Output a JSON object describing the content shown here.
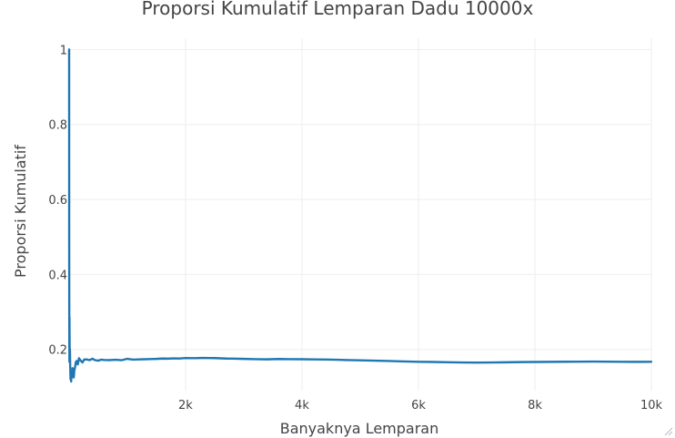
{
  "colors": {
    "series": "#1f77b4",
    "text": "#444444",
    "grid": "#eeeeee"
  },
  "chart_data": {
    "type": "line",
    "title": "Proporsi Kumulatif Lemparan Dadu 10000x",
    "xlabel": "Banyaknya Lemparan",
    "ylabel": "Proporsi Kumulatif",
    "xlim": [
      1,
      10000
    ],
    "ylim": [
      0.09,
      1.03
    ],
    "grid": true,
    "legend": "none",
    "x_ticks": [
      {
        "value": 2000,
        "label": "2k"
      },
      {
        "value": 4000,
        "label": "4k"
      },
      {
        "value": 6000,
        "label": "6k"
      },
      {
        "value": 8000,
        "label": "8k"
      },
      {
        "value": 10000,
        "label": "10k"
      }
    ],
    "y_ticks": [
      {
        "value": 0.2,
        "label": "0.2"
      },
      {
        "value": 0.4,
        "label": "0.4"
      },
      {
        "value": 0.6,
        "label": "0.6"
      },
      {
        "value": 0.8,
        "label": "0.8"
      },
      {
        "value": 1,
        "label": "1"
      }
    ],
    "series": [
      {
        "x": [
          1,
          2,
          3,
          4,
          5,
          6,
          7,
          8,
          10,
          12,
          15,
          20,
          25,
          30,
          35,
          40,
          45,
          50,
          55,
          60,
          70,
          80,
          90,
          100,
          115,
          130,
          150,
          170,
          200,
          230,
          260,
          300,
          350,
          400,
          450,
          500,
          550,
          600,
          700,
          800,
          900,
          1000,
          1100,
          1200,
          1300,
          1400,
          1500,
          1600,
          1700,
          1800,
          1900,
          2000,
          2100,
          2200,
          2300,
          2400,
          2500,
          2600,
          2700,
          2800,
          3000,
          3200,
          3400,
          3600,
          3800,
          4000,
          4200,
          4400,
          4600,
          4800,
          5000,
          5250,
          5500,
          5750,
          6000,
          6250,
          6500,
          6750,
          7000,
          7250,
          7500,
          7750,
          8000,
          8250,
          8500,
          8750,
          9000,
          9250,
          9500,
          9750,
          10000
        ],
        "y": [
          1.0,
          0.5,
          0.3333,
          0.25,
          0.2,
          0.1667,
          0.2857,
          0.25,
          0.2,
          0.1667,
          0.2,
          0.15,
          0.12,
          0.1333,
          0.1143,
          0.125,
          0.1333,
          0.14,
          0.1273,
          0.15,
          0.1429,
          0.125,
          0.1444,
          0.15,
          0.1652,
          0.1692,
          0.16,
          0.1765,
          0.17,
          0.1652,
          0.1731,
          0.1733,
          0.1714,
          0.175,
          0.1711,
          0.17,
          0.1727,
          0.1717,
          0.1714,
          0.1725,
          0.1711,
          0.175,
          0.1727,
          0.1733,
          0.1738,
          0.1743,
          0.1747,
          0.1756,
          0.1753,
          0.1761,
          0.1758,
          0.177,
          0.1767,
          0.1768,
          0.1774,
          0.1771,
          0.1768,
          0.1762,
          0.1756,
          0.1754,
          0.1747,
          0.174,
          0.1735,
          0.1744,
          0.174,
          0.1738,
          0.1733,
          0.173,
          0.1724,
          0.1715,
          0.171,
          0.17,
          0.1691,
          0.168,
          0.167,
          0.1665,
          0.1658,
          0.1652,
          0.1649,
          0.1651,
          0.1656,
          0.1662,
          0.1665,
          0.1668,
          0.1671,
          0.1673,
          0.1675,
          0.1672,
          0.167,
          0.1668,
          0.167
        ]
      }
    ]
  }
}
